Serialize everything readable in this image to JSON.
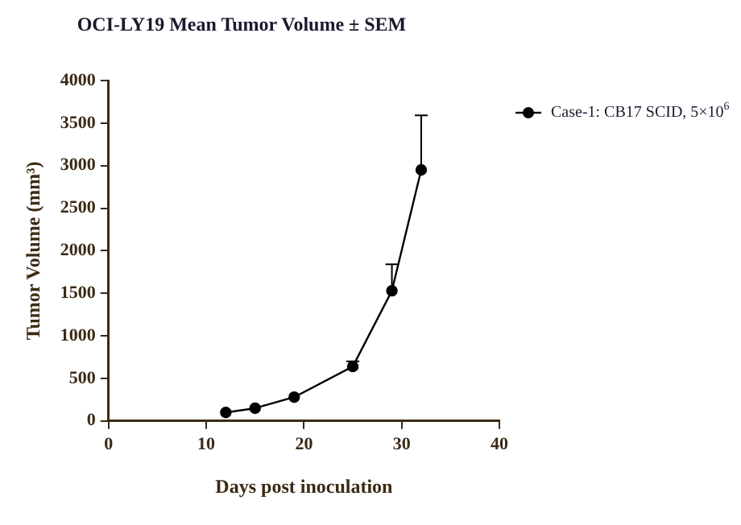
{
  "chart_data": {
    "type": "line",
    "title": "OCI-LY19 Mean Tumor Volume ± SEM",
    "xlabel": "Days post inoculation",
    "ylabel": "Tumor Volume (mm³)",
    "x": [
      12,
      15,
      19,
      25,
      29,
      32
    ],
    "series": [
      {
        "name": "Case-1: CB17 SCID, 5×10$^{6}$",
        "color": "#000000",
        "values": [
          100,
          150,
          280,
          640,
          1530,
          2950
        ],
        "errors": [
          null,
          null,
          null,
          [
            640,
            700
          ],
          [
            1530,
            1840
          ],
          [
            2950,
            3590
          ]
        ]
      }
    ],
    "xlim": [
      0,
      40
    ],
    "xticks": [
      0,
      10,
      20,
      30,
      40
    ],
    "ylim": [
      0,
      4000
    ],
    "yticks": [
      0,
      500,
      1000,
      1500,
      2000,
      2500,
      3000,
      3500,
      4000
    ],
    "grid": false,
    "legend": "top right",
    "marker": "circle",
    "line_style": "solid"
  }
}
